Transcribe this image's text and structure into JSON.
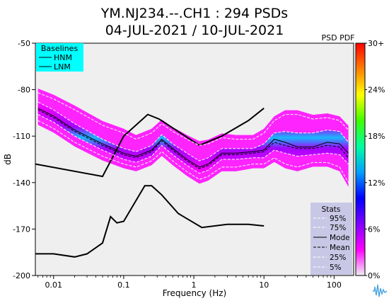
{
  "chart_data": {
    "type": "heatmap",
    "title": [
      "YM.NJ234.--.CH1 : 294 PSDs",
      "04-JUL-2021 / 10-JUL-2021"
    ],
    "xlabel": "Frequency (Hz)",
    "ylabel": "dB",
    "x_scale": "log",
    "xlim": [
      0.0055,
      190
    ],
    "ylim": [
      -200,
      -50
    ],
    "x_ticks": [
      {
        "value": 0.01,
        "label": "0.01"
      },
      {
        "value": 0.1,
        "label": "0.1"
      },
      {
        "value": 1,
        "label": "1"
      },
      {
        "value": 10,
        "label": "10"
      },
      {
        "value": 100,
        "label": "100"
      }
    ],
    "y_ticks": [
      {
        "value": -50,
        "label": "-50"
      },
      {
        "value": -80,
        "label": "-80"
      },
      {
        "value": -110,
        "label": "-110"
      },
      {
        "value": -140,
        "label": "-140"
      },
      {
        "value": -170,
        "label": "-170"
      },
      {
        "value": -200,
        "label": "-200"
      }
    ],
    "colorbar": {
      "label": "PSD PDF",
      "ticks": [
        {
          "value": 0,
          "label": "0%"
        },
        {
          "value": 6,
          "label": "6%"
        },
        {
          "value": 12,
          "label": "12%"
        },
        {
          "value": 18,
          "label": "18%"
        },
        {
          "value": 24,
          "label": "24%"
        },
        {
          "value": 30,
          "label": "30+"
        }
      ],
      "colors": [
        "#f0f0f0",
        "#ff00ff",
        "#8000ff",
        "#0000ff",
        "#00a0ff",
        "#00ffa0",
        "#40ff00",
        "#ffff00",
        "#ff8000",
        "#ff0000"
      ]
    },
    "baselines_legend": {
      "title": "Baselines",
      "entries": [
        "HNM",
        "LNM"
      ],
      "bg": "#00ffff"
    },
    "stats_legend": {
      "title": "Stats",
      "entries": [
        "95%",
        "75%",
        "Mode",
        "Mean",
        "25%",
        "5%"
      ],
      "bg": "#c8c8e6"
    },
    "series": [
      {
        "name": "HNM",
        "x": [
          0.0055,
          0.05,
          0.1,
          0.22,
          0.32,
          1.2,
          2.5,
          6,
          10
        ],
        "y": [
          -128,
          -136,
          -110,
          -96,
          -99,
          -116,
          -110,
          -100,
          -92
        ]
      },
      {
        "name": "LNM",
        "x": [
          0.0055,
          0.01,
          0.02,
          0.03,
          0.05,
          0.065,
          0.08,
          0.1,
          0.2,
          0.25,
          0.35,
          0.6,
          1.3,
          3,
          6,
          10
        ],
        "y": [
          -186,
          -186,
          -188,
          -186,
          -179,
          -162,
          -166,
          -165,
          -142,
          -142,
          -148,
          -160,
          -169,
          -167,
          -167,
          -168
        ]
      },
      {
        "name": "Mode",
        "x": [
          0.006,
          0.01,
          0.02,
          0.05,
          0.1,
          0.15,
          0.25,
          0.35,
          0.5,
          0.8,
          1.2,
          1.6,
          2.5,
          4,
          7,
          10,
          14,
          20,
          30,
          50,
          80,
          120,
          160
        ],
        "y": [
          -92,
          -97,
          -106,
          -115,
          -121,
          -123,
          -119,
          -112,
          -118,
          -125,
          -130,
          -128,
          -121,
          -121,
          -120,
          -119,
          -112,
          -114,
          -117,
          -117,
          -114,
          -115,
          -121
        ]
      },
      {
        "name": "Mean",
        "x": [
          0.006,
          0.01,
          0.02,
          0.05,
          0.1,
          0.15,
          0.25,
          0.35,
          0.5,
          0.8,
          1.2,
          1.6,
          2.5,
          4,
          7,
          10,
          14,
          20,
          30,
          50,
          80,
          120,
          160
        ],
        "y": [
          -93,
          -98,
          -107,
          -116,
          -122,
          -124,
          -120,
          -113,
          -119,
          -126,
          -131,
          -129,
          -122,
          -122,
          -121,
          -120,
          -114,
          -116,
          -118,
          -118,
          -116,
          -117,
          -124
        ]
      },
      {
        "name": "95%",
        "x": [
          0.006,
          0.01,
          0.02,
          0.05,
          0.1,
          0.15,
          0.25,
          0.35,
          0.5,
          0.8,
          1.2,
          1.6,
          2.5,
          4,
          7,
          10,
          14,
          20,
          30,
          50,
          80,
          120,
          160
        ],
        "y": [
          -82,
          -86,
          -93,
          -103,
          -108,
          -112,
          -108,
          -102,
          -107,
          -112,
          -116,
          -115,
          -111,
          -112,
          -112,
          -108,
          -100,
          -96,
          -96,
          -99,
          -98,
          -100,
          -106
        ]
      },
      {
        "name": "75%",
        "x": [
          0.006,
          0.01,
          0.02,
          0.05,
          0.1,
          0.15,
          0.25,
          0.35,
          0.5,
          0.8,
          1.2,
          1.6,
          2.5,
          4,
          7,
          10,
          14,
          20,
          30,
          50,
          80,
          120,
          160
        ],
        "y": [
          -88,
          -93,
          -102,
          -112,
          -118,
          -120,
          -116,
          -109,
          -115,
          -121,
          -126,
          -124,
          -118,
          -118,
          -118,
          -115,
          -108,
          -107,
          -108,
          -108,
          -106,
          -107,
          -114
        ]
      },
      {
        "name": "25%",
        "x": [
          0.006,
          0.01,
          0.02,
          0.05,
          0.1,
          0.15,
          0.25,
          0.35,
          0.5,
          0.8,
          1.2,
          1.6,
          2.5,
          4,
          7,
          10,
          14,
          20,
          30,
          50,
          80,
          120,
          160
        ],
        "y": [
          -96,
          -101,
          -110,
          -119,
          -125,
          -127,
          -123,
          -116,
          -122,
          -129,
          -134,
          -132,
          -125,
          -125,
          -124,
          -124,
          -119,
          -121,
          -123,
          -122,
          -121,
          -122,
          -128
        ]
      },
      {
        "name": "5%",
        "x": [
          0.006,
          0.01,
          0.02,
          0.05,
          0.1,
          0.15,
          0.25,
          0.35,
          0.5,
          0.8,
          1.2,
          1.6,
          2.5,
          4,
          7,
          10,
          14,
          20,
          30,
          50,
          80,
          120,
          160
        ],
        "y": [
          -100,
          -105,
          -114,
          -123,
          -128,
          -130,
          -126,
          -120,
          -126,
          -133,
          -138,
          -136,
          -130,
          -130,
          -128,
          -128,
          -124,
          -128,
          -130,
          -127,
          -127,
          -130,
          -140
        ]
      }
    ],
    "grid": false
  }
}
